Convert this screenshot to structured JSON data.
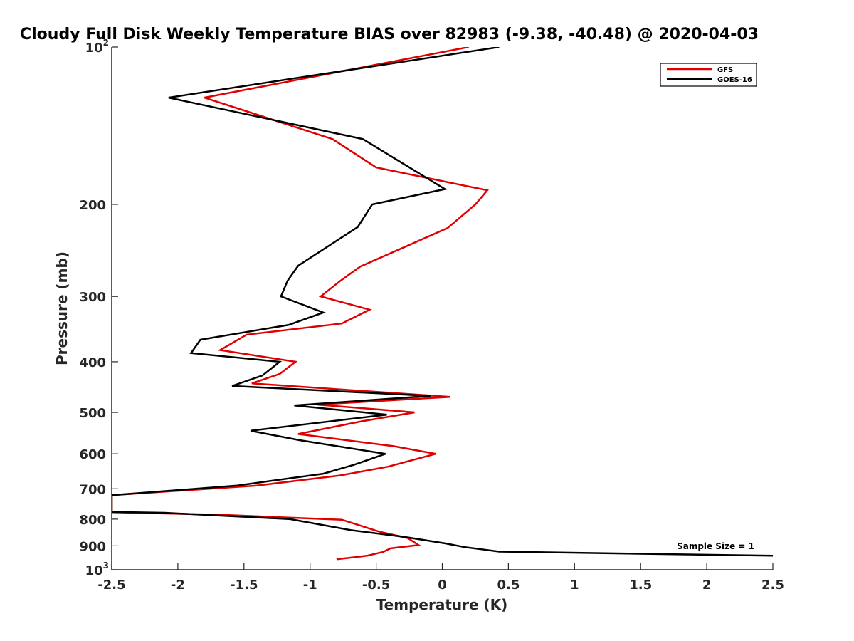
{
  "chart_data": {
    "type": "line",
    "title": "Cloudy Full Disk Weekly Temperature BIAS over 82983 (-9.38, -40.48) @ 2020-04-03",
    "xlabel": "Temperature (K)",
    "ylabel": "Pressure (mb)",
    "xlim": [
      -2.5,
      2.5
    ],
    "ylim": [
      100,
      1000
    ],
    "y_scale": "log",
    "y_reversed": true,
    "x_ticks": [
      -2.5,
      -2,
      -1.5,
      -1,
      -0.5,
      0,
      0.5,
      1,
      1.5,
      2,
      2.5
    ],
    "x_tick_labels": [
      "-2.5",
      "-2",
      "-1.5",
      "-1",
      "-0.5",
      "0",
      "0.5",
      "1",
      "1.5",
      "2",
      "2.5"
    ],
    "y_ticks": [
      100,
      200,
      300,
      400,
      500,
      600,
      700,
      800,
      900,
      1000
    ],
    "y_tick_labels": [
      {
        "base": "10",
        "exp": "2"
      },
      {
        "base": "200"
      },
      {
        "base": "300"
      },
      {
        "base": "400"
      },
      {
        "base": "500"
      },
      {
        "base": "600"
      },
      {
        "base": "700"
      },
      {
        "base": "800"
      },
      {
        "base": "900"
      },
      {
        "base": "10",
        "exp": "3"
      }
    ],
    "grid": false,
    "legend_position": "top-right",
    "annotation": "Sample Size = 1",
    "series": [
      {
        "name": "GFS",
        "color": "#e00000",
        "points": [
          [
            0.2,
            100
          ],
          [
            -1.8,
            125
          ],
          [
            -0.83,
            150
          ],
          [
            -0.5,
            170
          ],
          [
            0.34,
            188
          ],
          [
            0.25,
            200
          ],
          [
            0.04,
            222
          ],
          [
            -0.62,
            263
          ],
          [
            -0.77,
            280
          ],
          [
            -0.92,
            300
          ],
          [
            -0.55,
            318
          ],
          [
            -0.76,
            338
          ],
          [
            -1.48,
            355
          ],
          [
            -1.68,
            380
          ],
          [
            -1.11,
            400
          ],
          [
            -1.23,
            422
          ],
          [
            -1.44,
            440
          ],
          [
            0.06,
            467
          ],
          [
            -0.95,
            483
          ],
          [
            -0.21,
            500
          ],
          [
            -0.61,
            520
          ],
          [
            -1.09,
            550
          ],
          [
            -0.37,
            580
          ],
          [
            -0.05,
            600
          ],
          [
            -0.41,
            635
          ],
          [
            -0.77,
            660
          ],
          [
            -1.4,
            690
          ],
          [
            -2.5,
            720
          ],
          [
            -2.5,
            776
          ],
          [
            -1.68,
            785
          ],
          [
            -0.76,
            802
          ],
          [
            -0.48,
            845
          ],
          [
            -0.26,
            870
          ],
          [
            -0.18,
            897
          ],
          [
            -0.39,
            910
          ],
          [
            -0.45,
            925
          ],
          [
            -0.57,
            940
          ],
          [
            -0.8,
            955
          ]
        ]
      },
      {
        "name": "GOES-16",
        "color": "#000000",
        "points": [
          [
            0.43,
            100
          ],
          [
            -2.07,
            125
          ],
          [
            -0.6,
            150
          ],
          [
            0.02,
            187
          ],
          [
            -0.53,
            200
          ],
          [
            -0.64,
            221
          ],
          [
            -1.09,
            262
          ],
          [
            -1.17,
            280
          ],
          [
            -1.22,
            300
          ],
          [
            -0.9,
            322
          ],
          [
            -1.16,
            340
          ],
          [
            -1.83,
            363
          ],
          [
            -1.9,
            385
          ],
          [
            -1.23,
            400
          ],
          [
            -1.36,
            425
          ],
          [
            -1.59,
            445
          ],
          [
            -0.09,
            465
          ],
          [
            -1.12,
            485
          ],
          [
            -0.42,
            505
          ],
          [
            -1.45,
            542
          ],
          [
            -1.08,
            565
          ],
          [
            -0.43,
            600
          ],
          [
            -0.67,
            630
          ],
          [
            -0.9,
            655
          ],
          [
            -1.55,
            690
          ],
          [
            -2.5,
            720
          ],
          [
            -2.5,
            775
          ],
          [
            -2.1,
            778
          ],
          [
            -1.15,
            800
          ],
          [
            -0.69,
            840
          ],
          [
            -0.29,
            865
          ],
          [
            0.02,
            890
          ],
          [
            0.17,
            905
          ],
          [
            0.43,
            923
          ],
          [
            2.5,
            940
          ]
        ]
      }
    ]
  }
}
